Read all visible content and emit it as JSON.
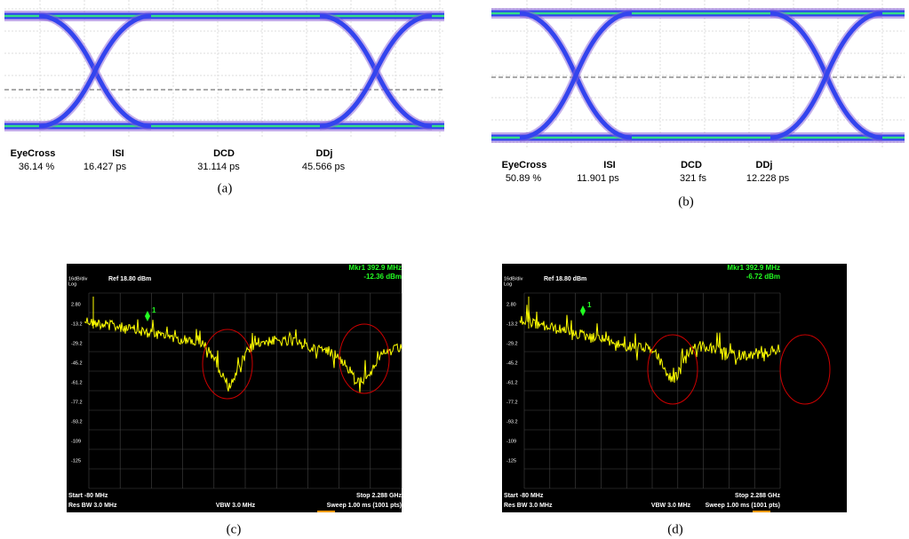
{
  "eye_panels": [
    {
      "caption": "(a)",
      "measurements": [
        {
          "label": "EyeCross",
          "value": "36.14 %"
        },
        {
          "label": "ISI",
          "value": "16.427 ps"
        },
        {
          "label": "DCD",
          "value": "31.114 ps"
        },
        {
          "label": "DDj",
          "value": "45.566 ps"
        }
      ]
    },
    {
      "caption": "(b)",
      "measurements": [
        {
          "label": "EyeCross",
          "value": "50.89 %"
        },
        {
          "label": "ISI",
          "value": "11.901 ps"
        },
        {
          "label": "DCD",
          "value": "321 fs"
        },
        {
          "label": "DDj",
          "value": "12.228 ps"
        }
      ]
    }
  ],
  "spectrum_panels": [
    {
      "caption": "(c)",
      "marker_freq": "Mkr1 392.9 MHz",
      "marker_level": "-12.36 dBm",
      "scale": "16dB/div",
      "mode": "Log",
      "ref": "Ref 18.80 dBm",
      "marker_id": "1",
      "y_labels": [
        "2.80",
        "-13.2",
        "-29.2",
        "-45.2",
        "-61.2",
        "-77.2",
        "-93.2",
        "-109",
        "-125"
      ],
      "start": "Start -80 MHz",
      "res_bw": "Res BW 3.0 MHz",
      "vbw": "VBW 3.0 MHz",
      "stop": "Stop 2.288 GHz",
      "sweep": "Sweep  1.00 ms (1001 pts)"
    },
    {
      "caption": "(d)",
      "marker_freq": "Mkr1 392.9 MHz",
      "marker_level": "-6.72 dBm",
      "scale": "16dB/div",
      "mode": "Log",
      "ref": "Ref 18.80 dBm",
      "marker_id": "1",
      "y_labels": [
        "2.80",
        "-13.2",
        "-29.2",
        "-45.2",
        "-61.2",
        "-77.2",
        "-93.2",
        "-109",
        "-125"
      ],
      "start": "Start -80 MHz",
      "res_bw": "Res BW 3.0 MHz",
      "vbw": "VBW 3.0 MHz",
      "stop": "Stop 2.288 GHz",
      "sweep": "Sweep  1.00 ms (1001 pts)"
    }
  ]
}
